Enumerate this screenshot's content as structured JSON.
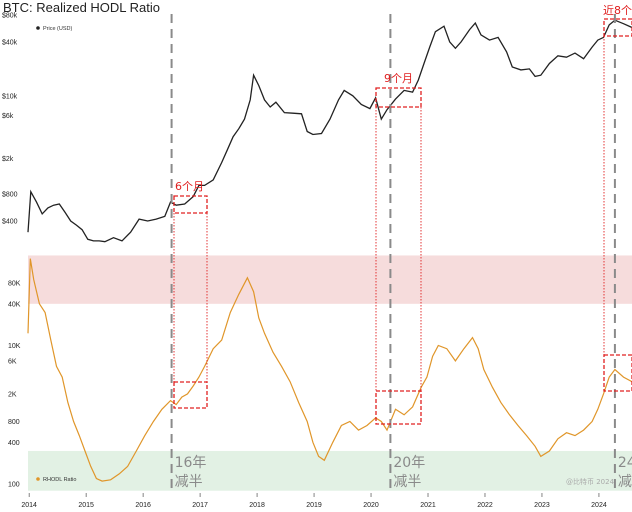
{
  "title": "BTC: Realized HODL Ratio",
  "colors": {
    "price": "#222222",
    "rhodl": "#e0962a",
    "red_zone": "#f6dcdc",
    "green_zone": "#e2f1e4",
    "annotation": "#e02020",
    "halving_line": "#8a8a8a"
  },
  "watermark": "@比特币 2024",
  "chart_data": [
    {
      "type": "line",
      "name": "price-panel",
      "legend": [
        "Price (USD)"
      ],
      "y_scale": "log",
      "y_ticks": [
        "$80k",
        "$40k",
        "$10k",
        "$6k",
        "$2k",
        "$800",
        "$400"
      ],
      "y_tick_values": [
        80000,
        40000,
        10000,
        6000,
        2000,
        800,
        400
      ],
      "x_range": [
        2014.0,
        2024.6
      ],
      "series": [
        {
          "name": "Price (USD)",
          "x": [
            2014.0,
            2014.05,
            2014.15,
            2014.25,
            2014.35,
            2014.45,
            2014.55,
            2014.65,
            2014.75,
            2014.85,
            2014.95,
            2015.05,
            2015.15,
            2015.25,
            2015.35,
            2015.5,
            2015.65,
            2015.8,
            2015.95,
            2016.1,
            2016.25,
            2016.4,
            2016.5,
            2016.6,
            2016.75,
            2016.9,
            2017.0,
            2017.1,
            2017.25,
            2017.4,
            2017.5,
            2017.6,
            2017.7,
            2017.8,
            2017.9,
            2017.96,
            2018.05,
            2018.15,
            2018.25,
            2018.35,
            2018.5,
            2018.65,
            2018.8,
            2018.9,
            2019.0,
            2019.15,
            2019.3,
            2019.45,
            2019.55,
            2019.7,
            2019.85,
            2020.0,
            2020.1,
            2020.2,
            2020.3,
            2020.45,
            2020.6,
            2020.75,
            2020.85,
            2020.95,
            2021.05,
            2021.15,
            2021.3,
            2021.4,
            2021.5,
            2021.6,
            2021.75,
            2021.85,
            2021.95,
            2022.1,
            2022.25,
            2022.4,
            2022.5,
            2022.65,
            2022.8,
            2022.9,
            2023.0,
            2023.15,
            2023.3,
            2023.45,
            2023.6,
            2023.75,
            2023.9,
            2024.0,
            2024.1,
            2024.2,
            2024.3,
            2024.45,
            2024.6
          ],
          "y": [
            300,
            850,
            650,
            480,
            560,
            600,
            620,
            500,
            400,
            360,
            320,
            250,
            240,
            240,
            235,
            260,
            240,
            300,
            420,
            400,
            420,
            450,
            650,
            600,
            620,
            750,
            1000,
            1000,
            1150,
            1800,
            2500,
            3500,
            4300,
            5500,
            9000,
            17000,
            13000,
            9000,
            7500,
            8500,
            6500,
            6400,
            6300,
            4000,
            3700,
            3800,
            5500,
            9000,
            11500,
            10000,
            8000,
            7200,
            9500,
            5500,
            7000,
            9200,
            11500,
            11000,
            15000,
            23000,
            35000,
            52000,
            60000,
            40000,
            34000,
            40000,
            55000,
            65000,
            48000,
            42000,
            45000,
            31000,
            21000,
            19500,
            20000,
            16500,
            17000,
            23000,
            28000,
            27000,
            30000,
            26000,
            35000,
            42000,
            45000,
            62000,
            70000,
            64000,
            58000
          ]
        }
      ]
    },
    {
      "type": "line",
      "name": "rhodl-panel",
      "legend": [
        "RHODL Ratio"
      ],
      "y_scale": "log",
      "y_ticks": [
        "80K",
        "40K",
        "10K",
        "6K",
        "2K",
        "800",
        "400",
        "100"
      ],
      "y_tick_values": [
        80000,
        40000,
        10000,
        6000,
        2000,
        800,
        400,
        100
      ],
      "x_ticks": [
        "2014",
        "2015",
        "2016",
        "2017",
        "2018",
        "2019",
        "2020",
        "2021",
        "2022",
        "2023",
        "2024"
      ],
      "x_tick_values": [
        2014,
        2015,
        2016,
        2017,
        2018,
        2019,
        2020,
        2021,
        2022,
        2023,
        2024
      ],
      "x_range": [
        2014.0,
        2024.6
      ],
      "bands": [
        {
          "name": "top-zone",
          "y_from": 40000,
          "y_to": 200000
        },
        {
          "name": "bottom-zone",
          "y_from": 80,
          "y_to": 300
        }
      ],
      "series": [
        {
          "name": "RHODL Ratio",
          "x": [
            2014.0,
            2014.04,
            2014.1,
            2014.2,
            2014.3,
            2014.4,
            2014.5,
            2014.6,
            2014.7,
            2014.8,
            2014.9,
            2015.0,
            2015.1,
            2015.2,
            2015.3,
            2015.45,
            2015.6,
            2015.75,
            2015.9,
            2016.05,
            2016.2,
            2016.35,
            2016.5,
            2016.6,
            2016.7,
            2016.8,
            2016.9,
            2017.0,
            2017.1,
            2017.25,
            2017.4,
            2017.55,
            2017.7,
            2017.85,
            2017.96,
            2018.05,
            2018.15,
            2018.3,
            2018.45,
            2018.6,
            2018.75,
            2018.9,
            2019.0,
            2019.1,
            2019.2,
            2019.35,
            2019.5,
            2019.65,
            2019.8,
            2019.95,
            2020.1,
            2020.2,
            2020.3,
            2020.45,
            2020.6,
            2020.75,
            2020.9,
            2021.0,
            2021.1,
            2021.2,
            2021.35,
            2021.5,
            2021.65,
            2021.8,
            2021.9,
            2022.0,
            2022.15,
            2022.3,
            2022.45,
            2022.6,
            2022.75,
            2022.9,
            2023.0,
            2023.15,
            2023.3,
            2023.45,
            2023.6,
            2023.75,
            2023.9,
            2024.0,
            2024.1,
            2024.2,
            2024.3,
            2024.45,
            2024.6
          ],
          "y": [
            15000,
            180000,
            90000,
            40000,
            30000,
            12000,
            5000,
            3500,
            1500,
            800,
            500,
            300,
            180,
            120,
            110,
            115,
            140,
            180,
            300,
            500,
            800,
            1200,
            1600,
            1400,
            1800,
            2000,
            2600,
            3500,
            5000,
            9000,
            12000,
            30000,
            55000,
            95000,
            60000,
            25000,
            15000,
            8000,
            5000,
            3000,
            1500,
            800,
            400,
            250,
            220,
            400,
            700,
            800,
            600,
            700,
            900,
            800,
            600,
            1200,
            1000,
            1300,
            2500,
            3500,
            7000,
            10000,
            9000,
            6000,
            9000,
            13000,
            9000,
            4500,
            2500,
            1500,
            1000,
            700,
            500,
            350,
            250,
            300,
            450,
            550,
            500,
            600,
            800,
            1200,
            2000,
            3500,
            4500,
            3500,
            3000
          ]
        }
      ]
    }
  ],
  "halvings": [
    {
      "year_value": 2016.52,
      "label_line1": "16年",
      "label_line2": "减半"
    },
    {
      "year_value": 2020.36,
      "label_line1": "20年",
      "label_line2": "减半"
    },
    {
      "year_value": 2024.3,
      "label_line1": "24",
      "label_line2": "减"
    }
  ],
  "annotations": [
    {
      "text": "6个月"
    },
    {
      "text": "9个月"
    },
    {
      "text": "近8个"
    }
  ]
}
